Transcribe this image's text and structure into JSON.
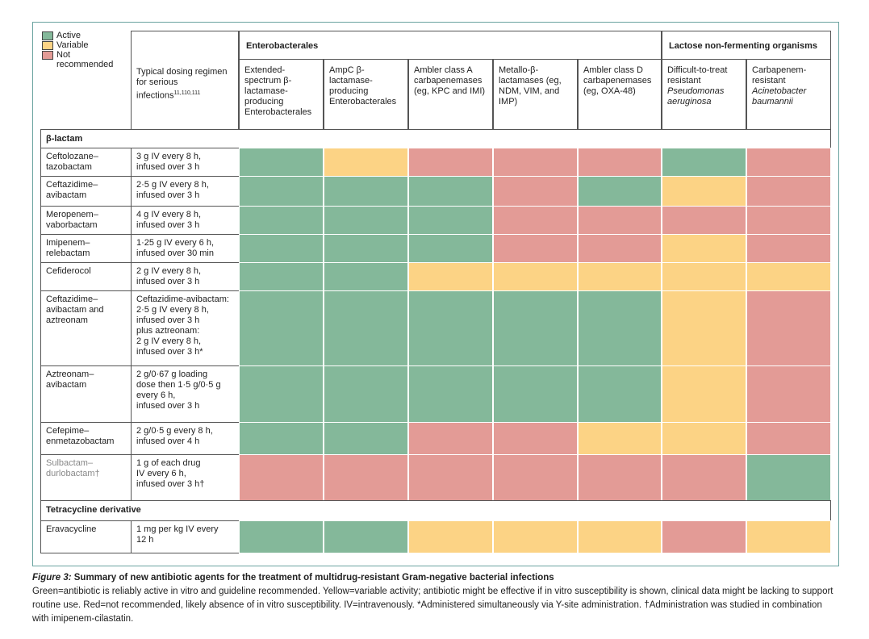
{
  "legend": [
    {
      "label": "Active",
      "color": "#84b89a"
    },
    {
      "label": "Variable",
      "color": "#fcd385"
    },
    {
      "label": "Not recommended",
      "color": "#e39b96"
    }
  ],
  "header": {
    "dosing": "Typical dosing regimen for serious infections",
    "dosing_refs": "11,110,111",
    "groups": [
      "Enterobacterales",
      "Lactose non-fermenting organisms"
    ],
    "columns": [
      {
        "text": "Extended-spectrum β-lactamase-producing Enterobacterales"
      },
      {
        "text": "AmpC β-lactamase-producing Enterobacterales"
      },
      {
        "text": "Ambler class A carbapenemases (eg, KPC and IMI)"
      },
      {
        "text": "Metallo-β-lactamases (eg, NDM, VIM, and IMP)"
      },
      {
        "text": "Ambler class D carbapenemases (eg, OXA-48)"
      },
      {
        "text": "Difficult-to-treat resistant",
        "italic": "Pseudomonas aeruginosa"
      },
      {
        "text": "Carbapenem-resistant",
        "italic": "Acinetobacter baumannii"
      }
    ]
  },
  "sections": [
    {
      "label": "β-lactam",
      "rows": [
        {
          "name": "Ceftolozane–tazobactam",
          "dosing": [
            "3 g IV every 8 h,",
            "infused over 3 h"
          ],
          "cells": [
            "#84b89a",
            "#fcd385",
            "#e39b96",
            "#e39b96",
            "#e39b96",
            "#84b89a",
            "#e39b96"
          ]
        },
        {
          "name": "Ceftazidime–avibactam",
          "dosing": [
            "2·5 g IV every 8 h,",
            "infused over 3 h"
          ],
          "cells": [
            "#84b89a",
            "#84b89a",
            "#84b89a",
            "#e39b96",
            "#84b89a",
            "#fcd385",
            "#e39b96"
          ]
        },
        {
          "name": "Meropenem–vaborbactam",
          "dosing": [
            "4 g IV every 8 h,",
            "infused over 3 h"
          ],
          "cells": [
            "#84b89a",
            "#84b89a",
            "#84b89a",
            "#e39b96",
            "#e39b96",
            "#e39b96",
            "#e39b96"
          ]
        },
        {
          "name": "Imipenem–relebactam",
          "dosing": [
            "1·25 g IV every 6 h,",
            "infused over 30 min"
          ],
          "cells": [
            "#84b89a",
            "#84b89a",
            "#84b89a",
            "#e39b96",
            "#e39b96",
            "#fcd385",
            "#e39b96"
          ]
        },
        {
          "name": "Cefiderocol",
          "dosing": [
            "2 g IV every 8 h,",
            "infused over 3 h"
          ],
          "cells": [
            "#84b89a",
            "#84b89a",
            "#fcd385",
            "#fcd385",
            "#fcd385",
            "#fcd385",
            "#fcd385"
          ]
        },
        {
          "name": "Ceftazidime–avibactam and aztreonam",
          "dosing": [
            "Ceftazidime-avibactam:",
            "2·5 g IV every 8 h,",
            "infused over 3 h",
            "plus aztreonam:",
            "2 g IV every 8 h,",
            "infused over 3 h*"
          ],
          "cells": [
            "#84b89a",
            "#84b89a",
            "#84b89a",
            "#84b89a",
            "#84b89a",
            "#fcd385",
            "#e39b96"
          ]
        },
        {
          "name": "Aztreonam–avibactam",
          "dosing": [
            "2 g/0·67 g loading",
            "dose then 1·5 g/0·5 g",
            "every 6 h,",
            "infused over 3 h"
          ],
          "cells": [
            "#84b89a",
            "#84b89a",
            "#84b89a",
            "#84b89a",
            "#84b89a",
            "#fcd385",
            "#e39b96"
          ]
        },
        {
          "name": "Cefepime–enmetazobactam",
          "dosing": [
            "2 g/0·5 g every 8 h,",
            "infused over 4 h"
          ],
          "cells": [
            "#84b89a",
            "#84b89a",
            "#e39b96",
            "#e39b96",
            "#fcd385",
            "#fcd385",
            "#e39b96"
          ]
        },
        {
          "name": "Sulbactam–durlobactam†",
          "dosing": [
            "1 g of each drug",
            "IV every 6 h,",
            "infused over 3 h†"
          ],
          "cells": [
            "#e39b96",
            "#e39b96",
            "#e39b96",
            "#e39b96",
            "#e39b96",
            "#e39b96",
            "#84b89a"
          ]
        }
      ]
    },
    {
      "label": "Tetracycline derivative",
      "rows": [
        {
          "name": "Eravacycline",
          "dosing": [
            "1 mg per kg IV every",
            "12 h"
          ],
          "cells": [
            "#84b89a",
            "#84b89a",
            "#fcd385",
            "#fcd385",
            "#fcd385",
            "#e39b96",
            "#fcd385"
          ]
        }
      ]
    }
  ],
  "caption": {
    "label": "Figure 3:",
    "title": "Summary of new antibiotic agents for the treatment of multidrug-resistant Gram-negative bacterial infections",
    "text": "Green=antibiotic is reliably active in vitro and guideline recommended. Yellow=variable activity; antibiotic might be effective if in vitro susceptibility is shown, clinical data might be lacking to support routine use. Red=not recommended, likely absence of in vitro susceptibility. IV=intravenously. *Administered simultaneously via Y-site administration. †Administration was studied in combination with imipenem-cilastatin."
  }
}
